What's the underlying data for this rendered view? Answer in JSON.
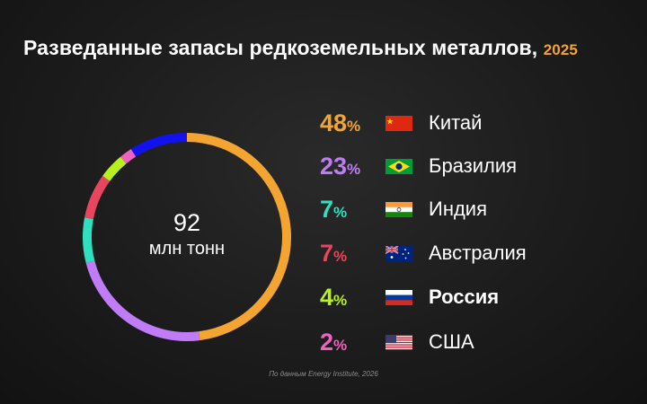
{
  "title": {
    "main": "Разведанные запасы редкоземельных металлов,",
    "year": "2025"
  },
  "center": {
    "value": "92",
    "unit": "млн тонн"
  },
  "source": "По данным Energy Institute, 2026",
  "chart_data": {
    "type": "pie",
    "title": "Разведанные запасы редкоземельных металлов, 2025",
    "unit": "%",
    "total_label": "92 млн тонн",
    "series": [
      {
        "name": "Китай",
        "value": 48,
        "color": "#f4a531",
        "flag": "china-flag-icon"
      },
      {
        "name": "Бразилия",
        "value": 23,
        "color": "#c07cf7",
        "flag": "brazil-flag-icon"
      },
      {
        "name": "Индия",
        "value": 7,
        "color": "#2ee0bd",
        "flag": "india-flag-icon"
      },
      {
        "name": "Австралия",
        "value": 7,
        "color": "#e8455e",
        "flag": "australia-flag-icon"
      },
      {
        "name": "Россия",
        "value": 4,
        "color": "#b6f01e",
        "flag": "russia-flag-icon",
        "bold": true
      },
      {
        "name": "США",
        "value": 2,
        "color": "#ef62c0",
        "flag": "usa-flag-icon"
      },
      {
        "name": "",
        "value": 9,
        "color": "#1212ee"
      }
    ]
  },
  "legend": [
    {
      "value": "48",
      "sign": "%",
      "country": "Китай"
    },
    {
      "value": "23",
      "sign": "%",
      "country": "Бразилия"
    },
    {
      "value": "7",
      "sign": "%",
      "country": "Индия"
    },
    {
      "value": "7",
      "sign": "%",
      "country": "Австралия"
    },
    {
      "value": "4",
      "sign": "%",
      "country": "Россия"
    },
    {
      "value": "2",
      "sign": "%",
      "country": "США"
    }
  ]
}
